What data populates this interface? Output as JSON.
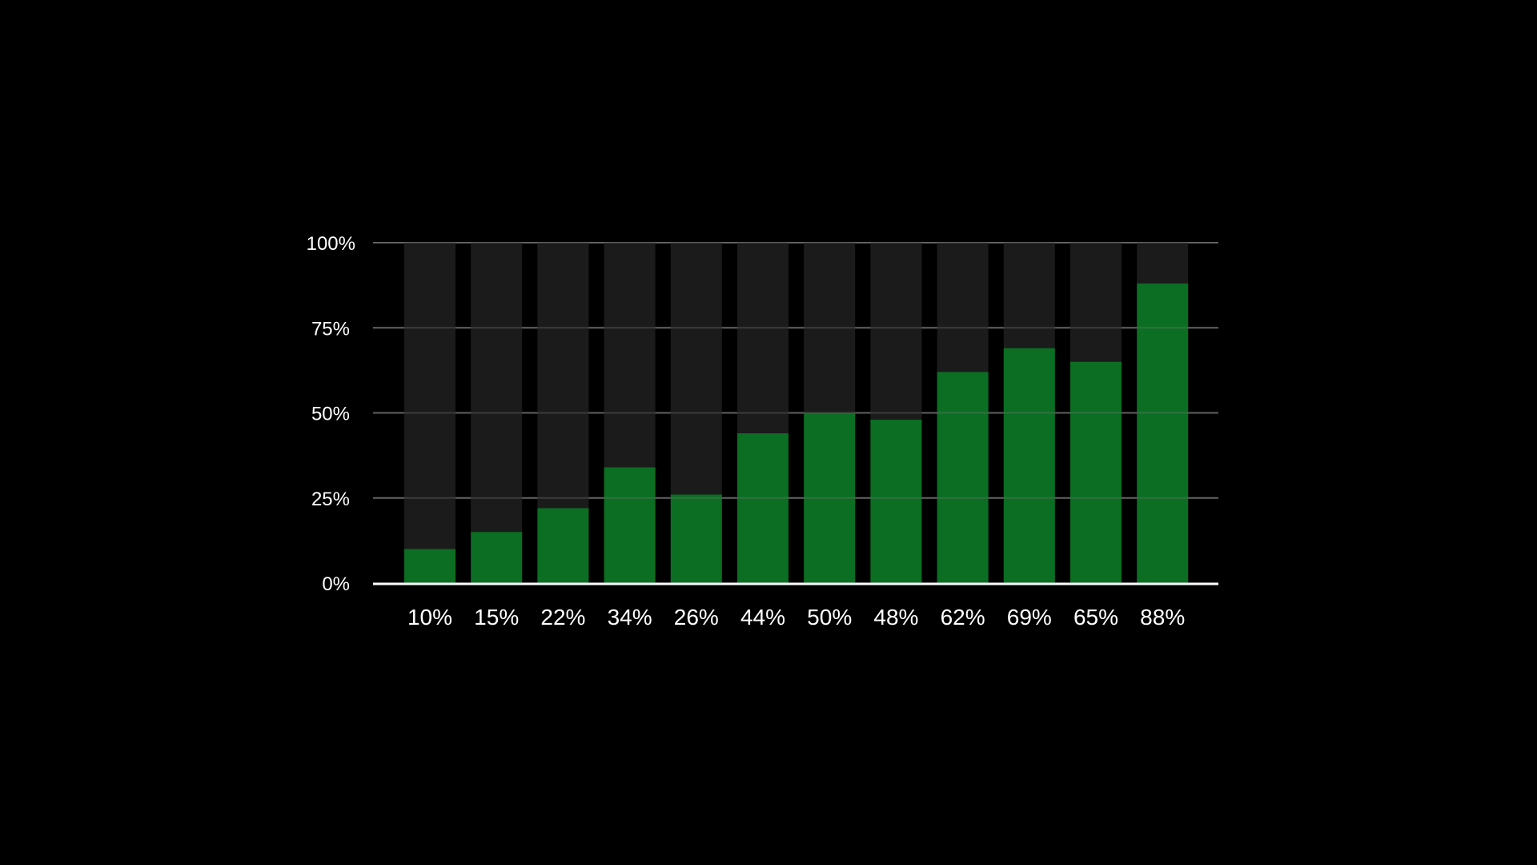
{
  "chart_data": {
    "type": "bar",
    "title": "",
    "xlabel": "",
    "ylabel": "",
    "ylim": [
      0,
      100
    ],
    "yticks": [
      "0%",
      "25%",
      "50%",
      "75%",
      "100%"
    ],
    "ytick_values": [
      0,
      25,
      50,
      75,
      100
    ],
    "categories": [
      "10%",
      "15%",
      "22%",
      "34%",
      "26%",
      "44%",
      "50%",
      "48%",
      "62%",
      "69%",
      "65%",
      "88%"
    ],
    "values": [
      10,
      15,
      22,
      34,
      26,
      44,
      50,
      48,
      62,
      69,
      65,
      88
    ],
    "grid": true,
    "colors": {
      "bar": "#0b6e23",
      "track": "#1b1b1b",
      "grid": "#555555",
      "axis": "#ffffff"
    }
  }
}
